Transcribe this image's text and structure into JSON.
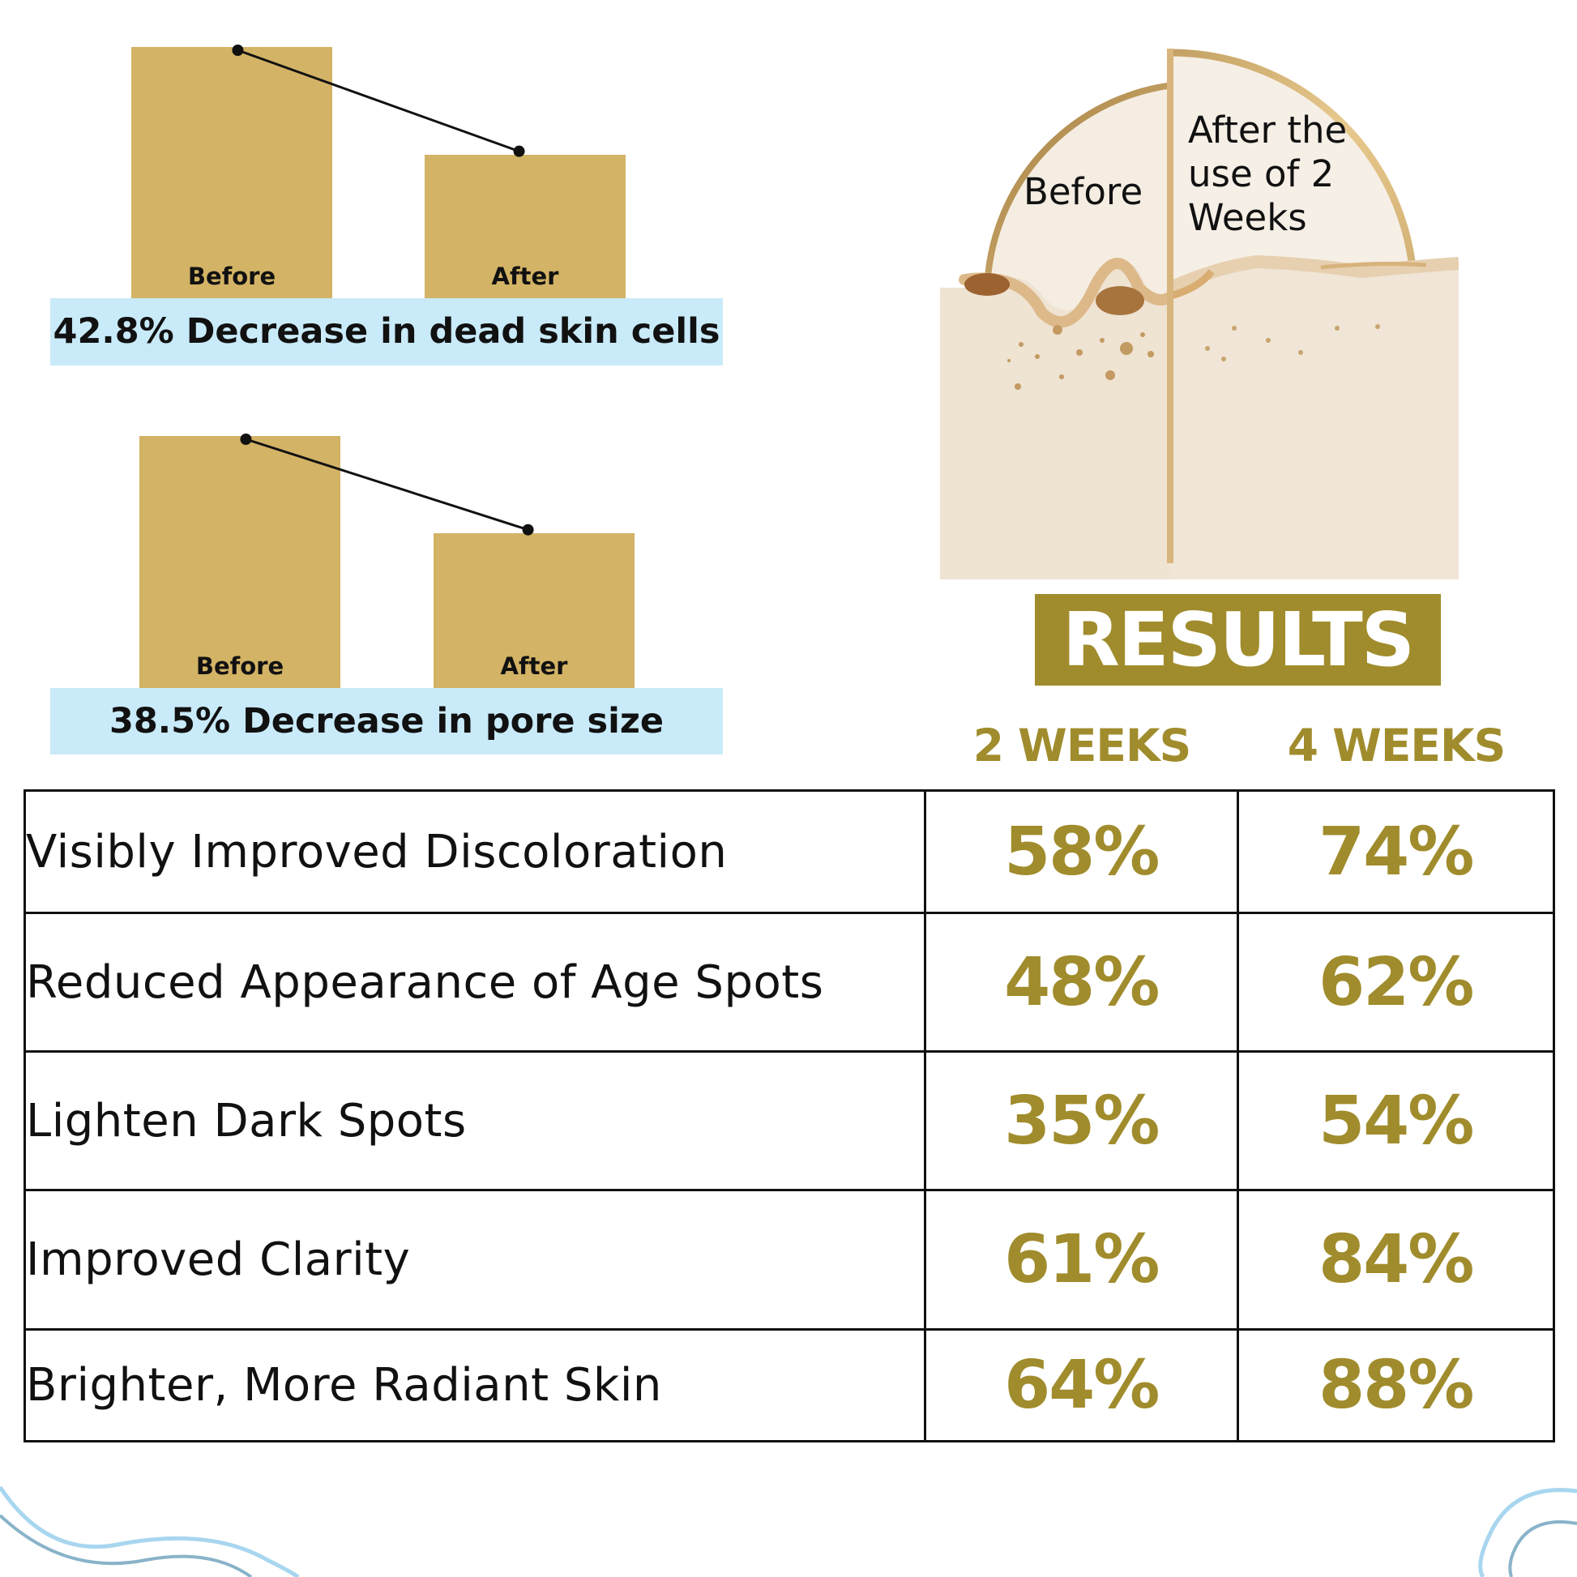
{
  "chart_data": [
    {
      "type": "bar",
      "categories": [
        "Before",
        "After"
      ],
      "values": [
        100,
        57.2
      ],
      "caption": "42.8% Decrease in dead skin cells"
    },
    {
      "type": "bar",
      "categories": [
        "Before",
        "After"
      ],
      "values": [
        100,
        61.5
      ],
      "caption": "38.5% Decrease in pore size"
    }
  ],
  "illustration": {
    "before_label": "Before",
    "after_label": "After the use of 2 Weeks"
  },
  "results": {
    "title": "RESULTS",
    "columns": [
      "2 WEEKS",
      "4 WEEKS"
    ],
    "rows": [
      {
        "label": "Visibly Improved Discoloration",
        "w2": "58%",
        "w4": "74%"
      },
      {
        "label": "Reduced Appearance of Age Spots",
        "w2": "48%",
        "w4": "62%"
      },
      {
        "label": "Lighten Dark Spots",
        "w2": "35%",
        "w4": "54%"
      },
      {
        "label": "Improved Clarity",
        "w2": "61%",
        "w4": "84%"
      },
      {
        "label": "Brighter, More Radiant Skin",
        "w2": "64%",
        "w4": "88%"
      }
    ]
  },
  "colors": {
    "bar": "#d3b365",
    "caption_bg": "#c9eaf9",
    "accent": "#a08c2c"
  }
}
